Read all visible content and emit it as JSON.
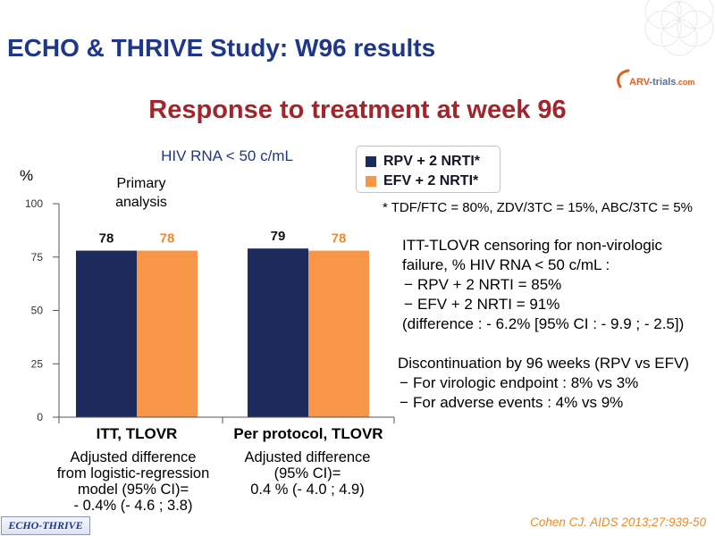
{
  "slide": {
    "title": "ECHO & THRIVE Study: W96 results",
    "subtitle": "Response to treatment at week 96",
    "logo": {
      "parts": [
        "ARV",
        "-trials",
        ".com"
      ]
    },
    "badge": "ECHO-THRIVE",
    "citation": "Cohen CJ. AIDS 2013;27:939-50"
  },
  "colors": {
    "title": "#1f3789",
    "subtitle": "#a3242a",
    "chart_title": "#1f3789",
    "citation": "#ee8a2a",
    "badge_text": "#1f3789",
    "logo_primary": "#e0601e",
    "logo_secondary": "#5a6c9c"
  },
  "chart_data": {
    "type": "bar",
    "title": "HIV RNA < 50 c/mL",
    "ylabel": "%",
    "annotation": "Primary analysis",
    "categories": [
      "ITT, TLOVR",
      "Per protocol, TLOVR"
    ],
    "series": [
      {
        "name": "RPV + 2 NRTI*",
        "values": [
          78,
          79
        ],
        "color": "#1c2a5c",
        "label_color": "#111111"
      },
      {
        "name": "EFV + 2 NRTI*",
        "values": [
          78,
          78
        ],
        "color": "#f79646",
        "label_color": "#ef8b2c"
      }
    ],
    "ylim": [
      0,
      100
    ],
    "yticks": [
      0,
      25,
      50,
      75,
      100
    ],
    "grid": false,
    "legend": "top-right",
    "footnote": "* TDF/FTC = 80%, ZDV/3TC = 15%, ABC/3TC = 5%"
  },
  "adjusted_differences": [
    {
      "lines": [
        "Adjusted difference",
        "from logistic-regression",
        "model (95% CI)=",
        "- 0.4% (- 4.6 ; 3.8)"
      ]
    },
    {
      "lines": [
        "Adjusted difference",
        "(95% CI)=",
        "0.4 % (- 4.0 ; 4.9)"
      ]
    }
  ],
  "censoring_note": {
    "heading_lines": [
      "ITT-TLOVR censoring for non-virologic",
      "failure, % HIV RNA < 50 c/mL :"
    ],
    "items": [
      "RPV + 2 NRTI = 85%",
      "EFV + 2 NRTI = 91%"
    ],
    "difference": "(difference : - 6.2% [95% CI : - 9.9 ; - 2.5])"
  },
  "discontinuation_note": {
    "heading": "Discontinuation by 96 weeks (RPV vs EFV)",
    "items": [
      "For virologic endpoint : 8% vs 3%",
      "For adverse events : 4% vs 9%"
    ]
  }
}
